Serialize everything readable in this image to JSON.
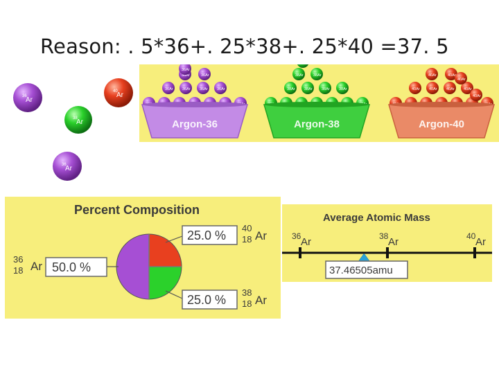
{
  "title": "Reason: . 5*36+. 25*38+. 25*40 =37. 5",
  "colors": {
    "panel_bg": "#f7ee7c",
    "argon36": "#a64fd4",
    "argon38": "#2bd12b",
    "argon40": "#e8401f",
    "marker": "#2aa3d8"
  },
  "atom_symbol": "Ar",
  "atom_mass_prefix": [
    "36",
    "38",
    "40"
  ],
  "bowls": [
    {
      "label": "Argon-36",
      "color": "argon36"
    },
    {
      "label": "Argon-38",
      "color": "argon38"
    },
    {
      "label": "Argon-40",
      "color": "argon40"
    }
  ],
  "percent_panel": {
    "title": "Percent Composition",
    "slices": [
      {
        "label": "50.0 %",
        "value": 50.0,
        "mass": "36",
        "atomic": "18",
        "symbol": "Ar",
        "color": "argon36"
      },
      {
        "label": "25.0 %",
        "value": 25.0,
        "mass": "40",
        "atomic": "18",
        "symbol": "Ar",
        "color": "argon40"
      },
      {
        "label": "25.0 %",
        "value": 25.0,
        "mass": "38",
        "atomic": "18",
        "symbol": "Ar",
        "color": "argon38"
      }
    ]
  },
  "mass_panel": {
    "title": "Average Atomic Mass",
    "ticks": [
      {
        "mass": "36",
        "symbol": "Ar",
        "value": 36
      },
      {
        "mass": "38",
        "symbol": "Ar",
        "value": 38
      },
      {
        "mass": "40",
        "symbol": "Ar",
        "value": 40
      }
    ],
    "result_value": 37.46505,
    "result_label": "37.46505amu"
  }
}
